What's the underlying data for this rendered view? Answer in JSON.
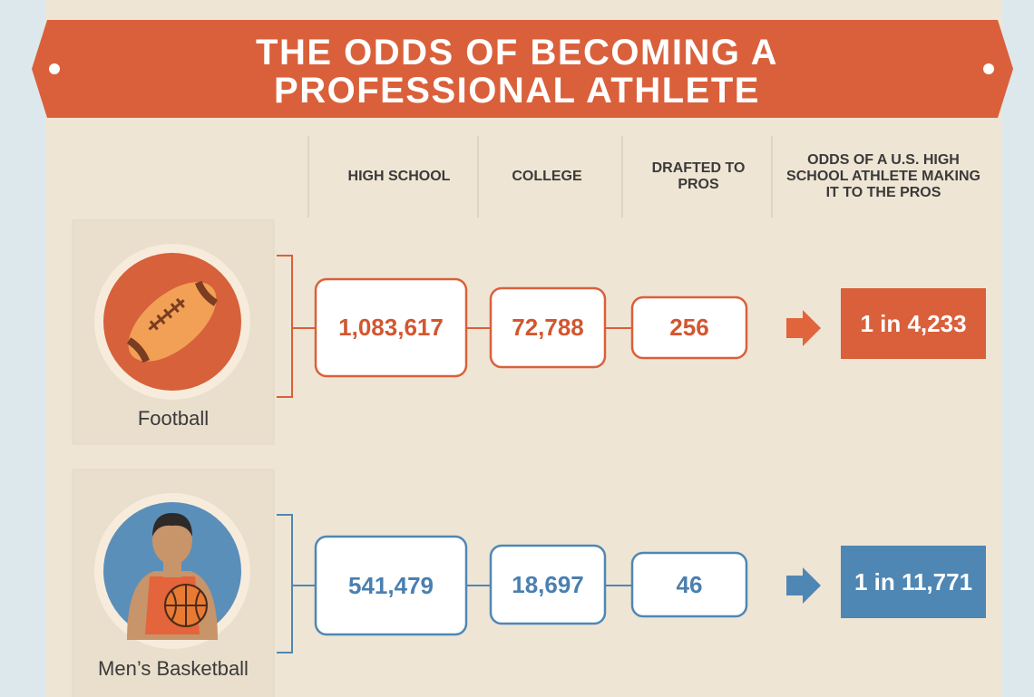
{
  "header": {
    "title_lines": [
      "THE ODDS OF BECOMING A",
      "PROFESSIONAL ATHLETE"
    ]
  },
  "columns": [
    "HIGH SCHOOL",
    "COLLEGE",
    "DRAFTED TO PROS",
    "ODDS OF A U.S. HIGH SCHOOL ATHLETE MAKING IT TO THE PROS"
  ],
  "sports": [
    {
      "name": "Football",
      "high_school": "1,083,617",
      "college": "72,788",
      "drafted": "256",
      "odds": "1 in 4,233"
    },
    {
      "name": "Men’s Basketball",
      "high_school": "541,479",
      "college": "18,697",
      "drafted": "46",
      "odds": "1 in 11,771"
    }
  ]
}
